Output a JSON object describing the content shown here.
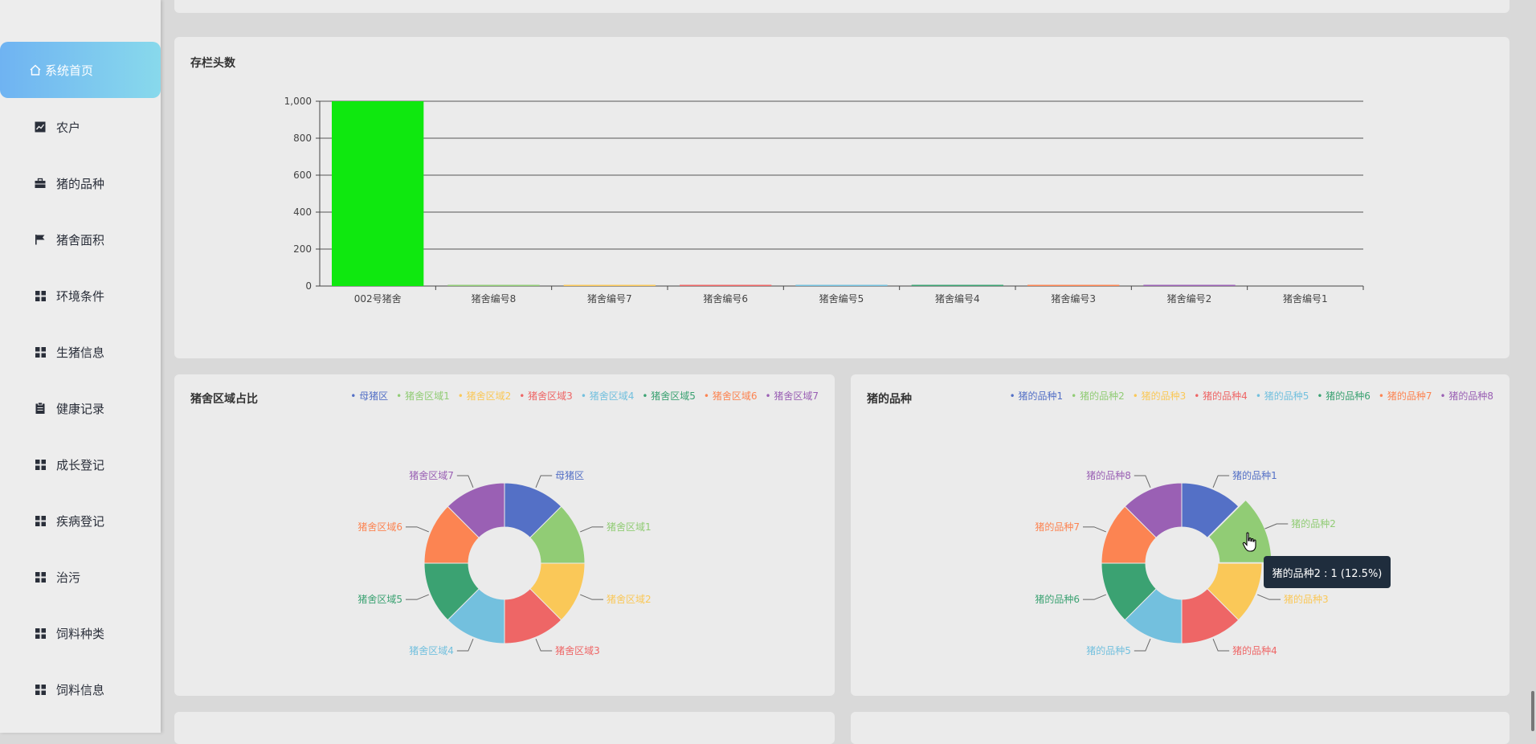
{
  "sidebar": {
    "home": "系统首页",
    "items": [
      {
        "label": "农户",
        "icon": "trend-chart-icon"
      },
      {
        "label": "猪的品种",
        "icon": "briefcase-icon"
      },
      {
        "label": "猪舍面积",
        "icon": "flag-icon"
      },
      {
        "label": "环境条件",
        "icon": "grid-icon"
      },
      {
        "label": "生猪信息",
        "icon": "grid-icon"
      },
      {
        "label": "健康记录",
        "icon": "clipboard-icon"
      },
      {
        "label": "成长登记",
        "icon": "grid-icon"
      },
      {
        "label": "疾病登记",
        "icon": "grid-icon"
      },
      {
        "label": "治污",
        "icon": "grid-icon"
      },
      {
        "label": "饲料种类",
        "icon": "grid-icon"
      },
      {
        "label": "饲料信息",
        "icon": "grid-icon"
      }
    ]
  },
  "cards": {
    "bar_title": "存栏头数",
    "pie1_title": "猪舍区域占比",
    "pie2_title": "猪的品种"
  },
  "chart_data": [
    {
      "type": "bar",
      "title": "存栏头数",
      "categories": [
        "002号猪舍",
        "猪舍编号8",
        "猪舍编号7",
        "猪舍编号6",
        "猪舍编号5",
        "猪舍编号4",
        "猪舍编号3",
        "猪舍编号2",
        "猪舍编号1"
      ],
      "values": [
        1000,
        6,
        5,
        5,
        4,
        3,
        2,
        1,
        0
      ],
      "colors": [
        "#0fe80f",
        "#91cc75",
        "#fac858",
        "#ee6666",
        "#73c0de",
        "#3ba272",
        "#fc8452",
        "#9a60b4",
        "#5470c6"
      ],
      "yticks": [
        "0",
        "200",
        "400",
        "600",
        "800",
        "1,000"
      ],
      "ylim": [
        0,
        1000
      ],
      "grid": true
    },
    {
      "type": "pie",
      "title": "猪舍区域占比",
      "labels": [
        "母猪区",
        "猪舍区域1",
        "猪舍区域2",
        "猪舍区域3",
        "猪舍区域4",
        "猪舍区域5",
        "猪舍区域6",
        "猪舍区域7"
      ],
      "values": [
        1,
        1,
        1,
        1,
        1,
        1,
        1,
        1
      ],
      "colors": [
        "#5470c6",
        "#91cc75",
        "#fac858",
        "#ee6666",
        "#73c0de",
        "#3ba272",
        "#fc8452",
        "#9a60b4"
      ]
    },
    {
      "type": "pie",
      "title": "猪的品种",
      "labels": [
        "猪的品种1",
        "猪的品种2",
        "猪的品种3",
        "猪的品种4",
        "猪的品种5",
        "猪的品种6",
        "猪的品种7",
        "猪的品种8"
      ],
      "values": [
        1,
        1,
        1,
        1,
        1,
        1,
        1,
        1
      ],
      "colors": [
        "#5470c6",
        "#91cc75",
        "#fac858",
        "#ee6666",
        "#73c0de",
        "#3ba272",
        "#fc8452",
        "#9a60b4"
      ],
      "highlighted": "猪的品种2"
    }
  ],
  "tooltip": "猪的品种2 : 1 (12.5%)"
}
